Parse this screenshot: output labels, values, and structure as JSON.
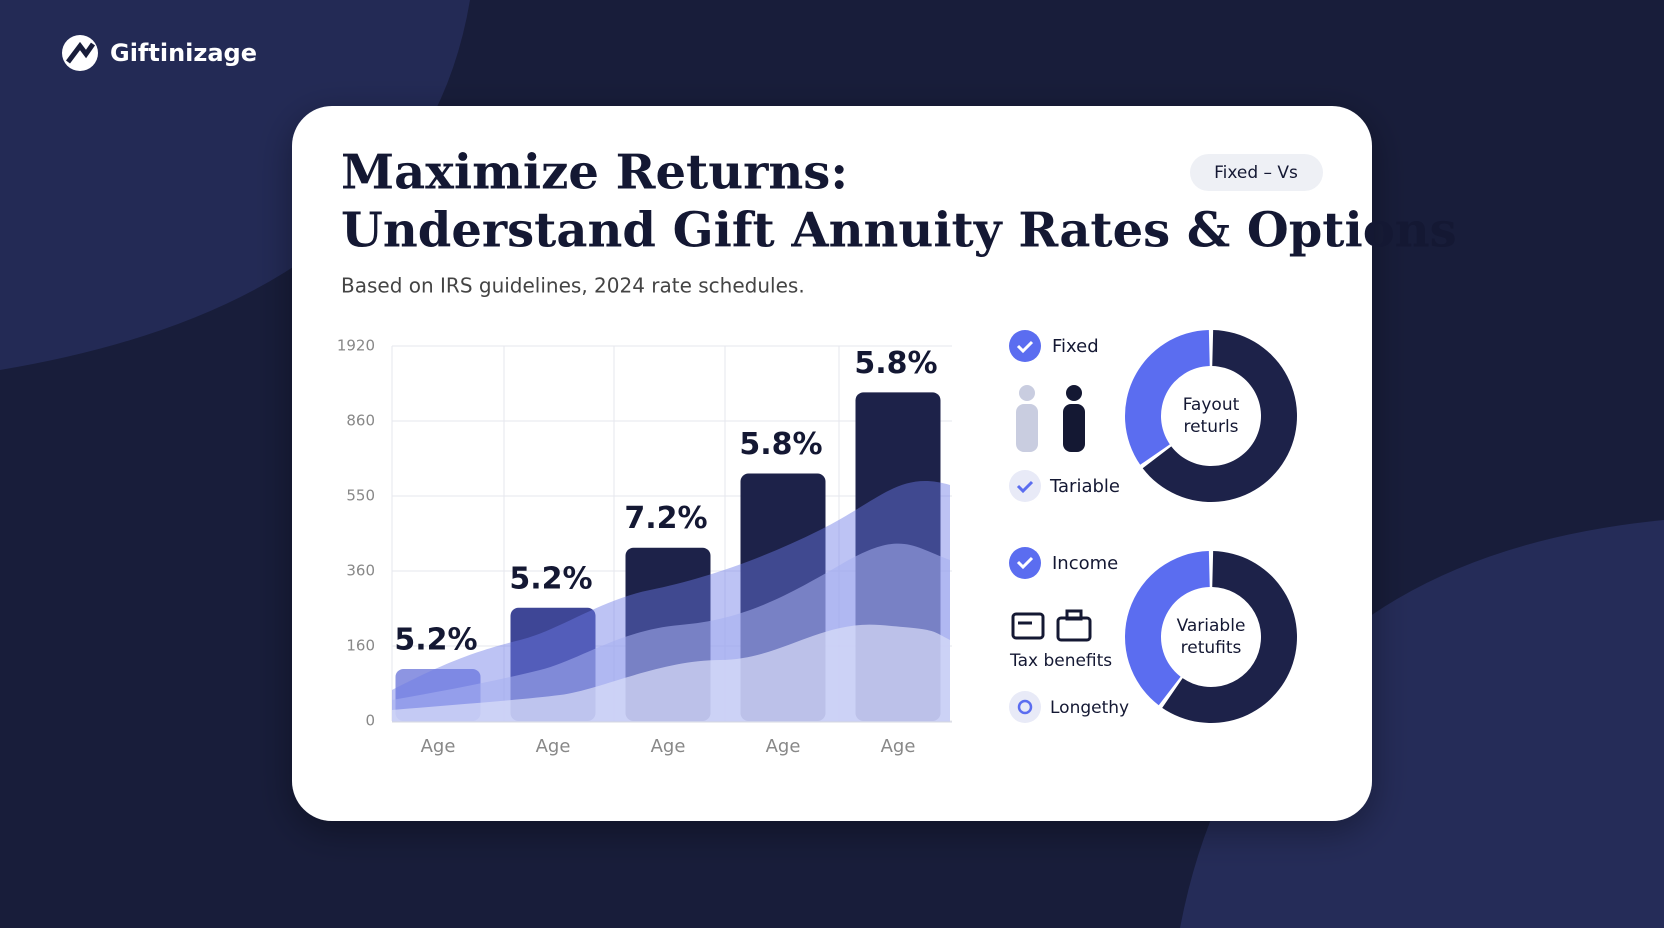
{
  "brand": {
    "name": "Giftinizage"
  },
  "card": {
    "title_lines": [
      "Maximize Returns:",
      "Understand Gift Annuity Rates & Options"
    ],
    "subtitle": "Based on IRS guidelines, 2024 rate schedules.",
    "toggle": "Fixed – Vs"
  },
  "legend": {
    "items": [
      "Fixed",
      "Tariable",
      "Income",
      "Tax benefits",
      "Longethy"
    ]
  },
  "chart_data": [
    {
      "type": "bar",
      "categories": [
        "Age",
        "Age",
        "Age",
        "Age",
        "Age"
      ],
      "values": [
        111,
        262,
        419,
        643,
        1265
      ],
      "colors": [
        "#8d95e2",
        "#3e4696",
        "#1d2249",
        "#1d2249",
        "#1d2249"
      ],
      "bar_annotations": [
        "5.2%",
        "5.2%",
        "7.2%",
        "5.8%",
        "5.8%"
      ],
      "ylim": [
        0,
        1920
      ],
      "yticks": [
        0,
        160,
        360,
        550,
        860,
        1920
      ],
      "grid": true
    },
    {
      "type": "donut",
      "center_label": [
        "Fayout",
        "returls"
      ],
      "values": [
        65,
        35
      ],
      "colors": [
        "#1d2249",
        "#5b6df0"
      ]
    },
    {
      "type": "donut",
      "center_label": [
        "Variable",
        "retufits"
      ],
      "values": [
        60,
        40
      ],
      "colors": [
        "#1d2249",
        "#5b6df0"
      ]
    }
  ]
}
